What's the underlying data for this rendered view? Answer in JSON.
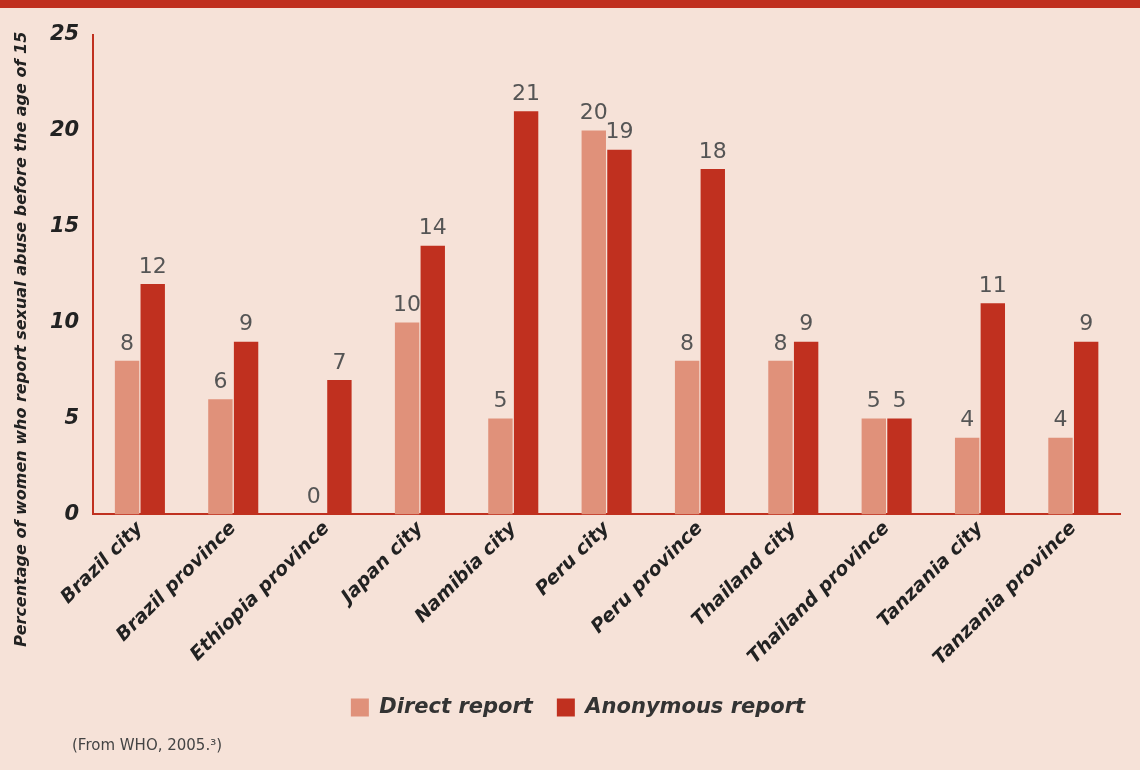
{
  "chart_data": {
    "type": "bar",
    "ylabel": "Percentage of women who report sexual abuse before the age of 15",
    "categories": [
      "Brazil city",
      "Brazil province",
      "Ethiopia province",
      "Japan city",
      "Namibia city",
      "Peru city",
      "Peru province",
      "Thailand city",
      "Thailand province",
      "Tanzania city",
      "Tanzania province"
    ],
    "series": [
      {
        "name": "Direct report",
        "color": "#e0917a",
        "values": [
          8,
          6,
          0,
          10,
          5,
          20,
          8,
          8,
          5,
          4,
          4
        ]
      },
      {
        "name": "Anonymous report",
        "color": "#c0301f",
        "values": [
          12,
          9,
          7,
          14,
          21,
          19,
          18,
          9,
          5,
          11,
          9
        ]
      }
    ],
    "ylim": [
      0,
      25
    ],
    "yticks": [
      0,
      5,
      10,
      15,
      20,
      25
    ],
    "grid": false,
    "legend": "bottom",
    "data_labels": true,
    "annotations": [
      "(From WHO, 2005.³)"
    ]
  }
}
